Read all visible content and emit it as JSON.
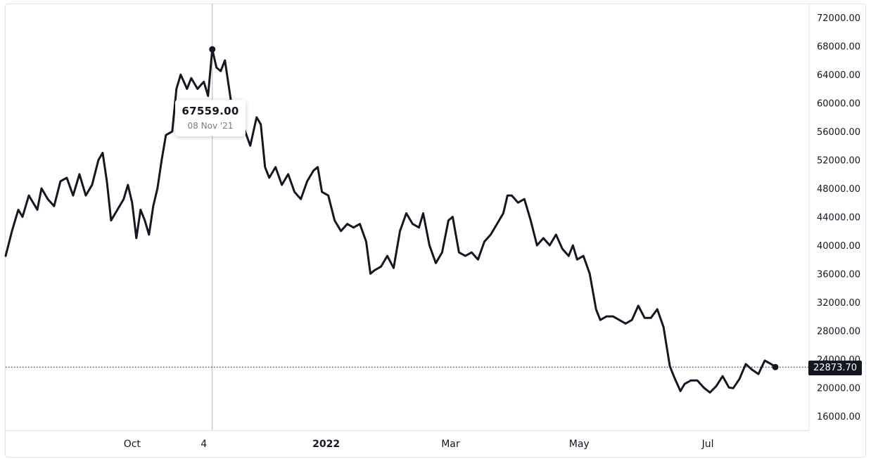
{
  "tooltip": {
    "value": "67559.00",
    "date": "08 Nov '21"
  },
  "last_price": {
    "label": "22873.70",
    "value": 22873.7
  },
  "colors": {
    "line": "#131722",
    "grid": "#e0e3eb",
    "crosshair": "#b2b5be",
    "label_bg": "#131722"
  },
  "chart_data": {
    "type": "line",
    "title": "",
    "xlabel": "",
    "ylabel": "",
    "ylim": [
      14000,
      74000
    ],
    "y_ticks": [
      "72000.00",
      "68000.00",
      "64000.00",
      "60000.00",
      "56000.00",
      "52000.00",
      "48000.00",
      "44000.00",
      "40000.00",
      "36000.00",
      "32000.00",
      "28000.00",
      "24000.00",
      "20000.00",
      "16000.00"
    ],
    "x_ticks": [
      {
        "label": "Oct",
        "date": "2021-10-01",
        "bold": false
      },
      {
        "label": "4",
        "date": "2021-11-04",
        "bold": false
      },
      {
        "label": "2022",
        "date": "2022-01-01",
        "bold": true
      },
      {
        "label": "Mar",
        "date": "2022-03-01",
        "bold": false
      },
      {
        "label": "May",
        "date": "2022-05-01",
        "bold": false
      },
      {
        "label": "Jul",
        "date": "2022-07-01",
        "bold": false
      }
    ],
    "crosshair_date": "2021-11-08",
    "grid": false,
    "series": [
      {
        "points": [
          [
            "2021-08-02",
            38500
          ],
          [
            "2021-08-05",
            42000
          ],
          [
            "2021-08-08",
            45000
          ],
          [
            "2021-08-10",
            44000
          ],
          [
            "2021-08-13",
            47000
          ],
          [
            "2021-08-17",
            45000
          ],
          [
            "2021-08-19",
            48000
          ],
          [
            "2021-08-22",
            46500
          ],
          [
            "2021-08-25",
            45500
          ],
          [
            "2021-08-28",
            49000
          ],
          [
            "2021-08-31",
            49500
          ],
          [
            "2021-09-03",
            47000
          ],
          [
            "2021-09-06",
            50000
          ],
          [
            "2021-09-09",
            47000
          ],
          [
            "2021-09-12",
            48500
          ],
          [
            "2021-09-15",
            52000
          ],
          [
            "2021-09-17",
            53000
          ],
          [
            "2021-09-19",
            49000
          ],
          [
            "2021-09-21",
            43500
          ],
          [
            "2021-09-24",
            45000
          ],
          [
            "2021-09-27",
            46500
          ],
          [
            "2021-09-29",
            48500
          ],
          [
            "2021-10-01",
            46000
          ],
          [
            "2021-10-03",
            41000
          ],
          [
            "2021-10-05",
            45000
          ],
          [
            "2021-10-07",
            43500
          ],
          [
            "2021-10-09",
            41500
          ],
          [
            "2021-10-11",
            45500
          ],
          [
            "2021-10-13",
            48000
          ],
          [
            "2021-10-15",
            52000
          ],
          [
            "2021-10-17",
            55500
          ],
          [
            "2021-10-20",
            56000
          ],
          [
            "2021-10-22",
            62000
          ],
          [
            "2021-10-24",
            64000
          ],
          [
            "2021-10-27",
            62000
          ],
          [
            "2021-10-29",
            63500
          ],
          [
            "2021-11-01",
            62000
          ],
          [
            "2021-11-04",
            63000
          ],
          [
            "2021-11-06",
            61000
          ],
          [
            "2021-11-08",
            67559
          ],
          [
            "2021-11-10",
            65000
          ],
          [
            "2021-11-12",
            64500
          ],
          [
            "2021-11-14",
            66000
          ],
          [
            "2021-11-17",
            60000
          ],
          [
            "2021-11-19",
            57000
          ],
          [
            "2021-11-21",
            58000
          ],
          [
            "2021-11-23",
            56500
          ],
          [
            "2021-11-26",
            54000
          ],
          [
            "2021-11-29",
            58000
          ],
          [
            "2021-12-01",
            57000
          ],
          [
            "2021-12-03",
            51000
          ],
          [
            "2021-12-05",
            49500
          ],
          [
            "2021-12-08",
            51000
          ],
          [
            "2021-12-11",
            48500
          ],
          [
            "2021-12-14",
            50000
          ],
          [
            "2021-12-17",
            47500
          ],
          [
            "2021-12-20",
            46500
          ],
          [
            "2021-12-23",
            49000
          ],
          [
            "2021-12-26",
            50500
          ],
          [
            "2021-12-28",
            51000
          ],
          [
            "2021-12-30",
            47500
          ],
          [
            "2022-01-02",
            47000
          ],
          [
            "2022-01-05",
            43500
          ],
          [
            "2022-01-08",
            42000
          ],
          [
            "2022-01-11",
            43000
          ],
          [
            "2022-01-14",
            42500
          ],
          [
            "2022-01-17",
            43000
          ],
          [
            "2022-01-20",
            40500
          ],
          [
            "2022-01-22",
            36000
          ],
          [
            "2022-01-24",
            36500
          ],
          [
            "2022-01-27",
            37000
          ],
          [
            "2022-01-30",
            38500
          ],
          [
            "2022-02-02",
            36800
          ],
          [
            "2022-02-05",
            42000
          ],
          [
            "2022-02-08",
            44500
          ],
          [
            "2022-02-11",
            43000
          ],
          [
            "2022-02-14",
            42500
          ],
          [
            "2022-02-16",
            44500
          ],
          [
            "2022-02-19",
            40000
          ],
          [
            "2022-02-22",
            37500
          ],
          [
            "2022-02-25",
            39000
          ],
          [
            "2022-02-28",
            43500
          ],
          [
            "2022-03-02",
            44000
          ],
          [
            "2022-03-05",
            39000
          ],
          [
            "2022-03-08",
            38500
          ],
          [
            "2022-03-11",
            39000
          ],
          [
            "2022-03-14",
            38000
          ],
          [
            "2022-03-17",
            40500
          ],
          [
            "2022-03-20",
            41500
          ],
          [
            "2022-03-23",
            43000
          ],
          [
            "2022-03-26",
            44500
          ],
          [
            "2022-03-28",
            47000
          ],
          [
            "2022-03-30",
            47000
          ],
          [
            "2022-04-02",
            46000
          ],
          [
            "2022-04-05",
            46500
          ],
          [
            "2022-04-08",
            43500
          ],
          [
            "2022-04-11",
            40000
          ],
          [
            "2022-04-14",
            41000
          ],
          [
            "2022-04-17",
            40000
          ],
          [
            "2022-04-20",
            41500
          ],
          [
            "2022-04-23",
            39500
          ],
          [
            "2022-04-26",
            38500
          ],
          [
            "2022-04-28",
            40000
          ],
          [
            "2022-04-30",
            38000
          ],
          [
            "2022-05-03",
            38500
          ],
          [
            "2022-05-06",
            36000
          ],
          [
            "2022-05-09",
            31000
          ],
          [
            "2022-05-11",
            29500
          ],
          [
            "2022-05-14",
            30000
          ],
          [
            "2022-05-17",
            30000
          ],
          [
            "2022-05-20",
            29500
          ],
          [
            "2022-05-23",
            29000
          ],
          [
            "2022-05-26",
            29500
          ],
          [
            "2022-05-29",
            31500
          ],
          [
            "2022-06-01",
            29800
          ],
          [
            "2022-06-04",
            29800
          ],
          [
            "2022-06-07",
            31000
          ],
          [
            "2022-06-10",
            28500
          ],
          [
            "2022-06-13",
            23000
          ],
          [
            "2022-06-15",
            21500
          ],
          [
            "2022-06-18",
            19500
          ],
          [
            "2022-06-20",
            20500
          ],
          [
            "2022-06-23",
            21000
          ],
          [
            "2022-06-26",
            21000
          ],
          [
            "2022-06-29",
            20000
          ],
          [
            "2022-07-02",
            19300
          ],
          [
            "2022-07-05",
            20200
          ],
          [
            "2022-07-08",
            21600
          ],
          [
            "2022-07-11",
            20000
          ],
          [
            "2022-07-13",
            19900
          ],
          [
            "2022-07-16",
            21200
          ],
          [
            "2022-07-19",
            23300
          ],
          [
            "2022-07-22",
            22500
          ],
          [
            "2022-07-25",
            21900
          ],
          [
            "2022-07-28",
            23800
          ],
          [
            "2022-07-31",
            23300
          ],
          [
            "2022-08-02",
            22873.7
          ]
        ]
      }
    ]
  }
}
